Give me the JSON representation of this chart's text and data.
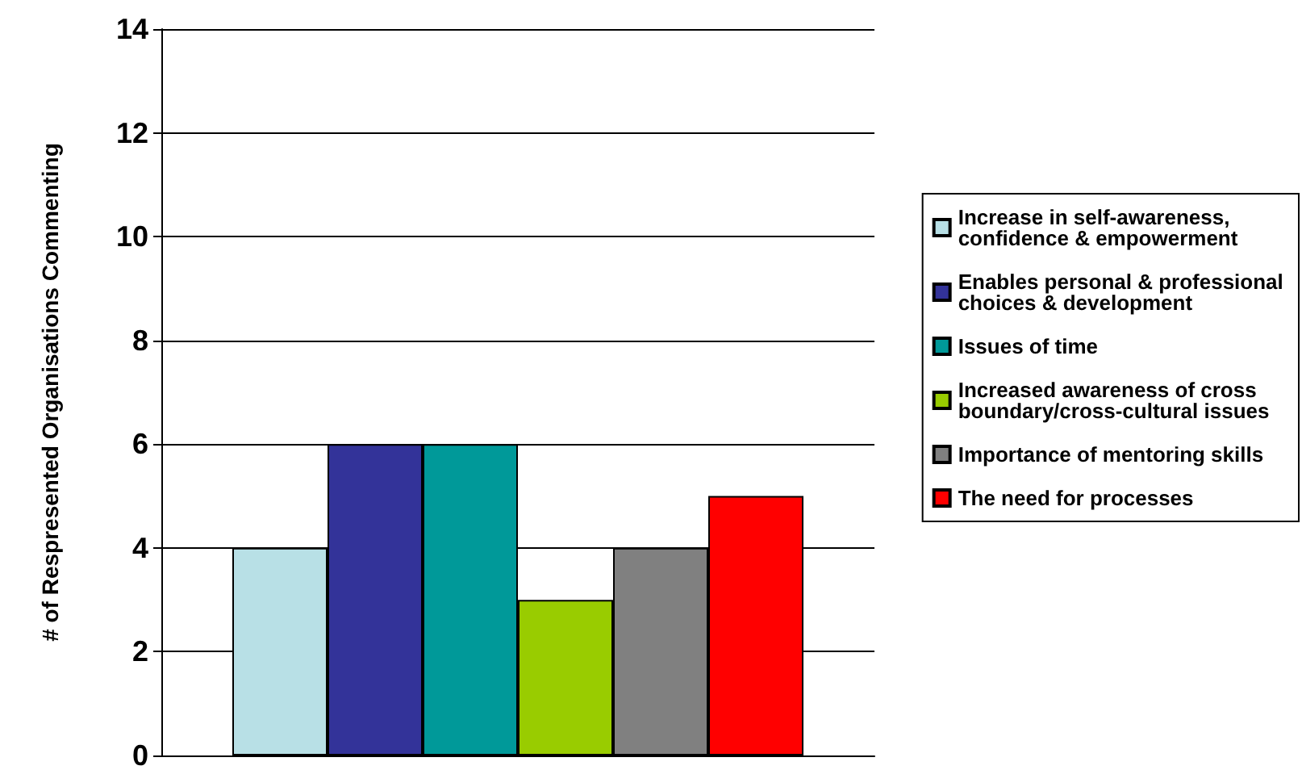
{
  "chart_data": {
    "type": "bar",
    "ylabel": "# of Respresented Organisations Commenting",
    "categories": [
      null
    ],
    "series": [
      {
        "name": "Increase in self-awareness, confidence & empowerment",
        "color": "#b8e0e6",
        "values": [
          4
        ]
      },
      {
        "name": "Enables personal & professional choices & development",
        "color": "#333399",
        "values": [
          6
        ]
      },
      {
        "name": "Issues of time",
        "color": "#009999",
        "values": [
          6
        ]
      },
      {
        "name": "Increased awareness of cross boundary/cross-cultural issues",
        "color": "#99cc00",
        "values": [
          3
        ]
      },
      {
        "name": "Importance of mentoring skills",
        "color": "#808080",
        "values": [
          4
        ]
      },
      {
        "name": "The need for processes",
        "color": "#ff0000",
        "values": [
          5
        ]
      }
    ],
    "ylim": [
      0,
      14
    ],
    "yticks": [
      0,
      2,
      4,
      6,
      8,
      10,
      12,
      14
    ],
    "grid": "y",
    "legend": "right"
  }
}
